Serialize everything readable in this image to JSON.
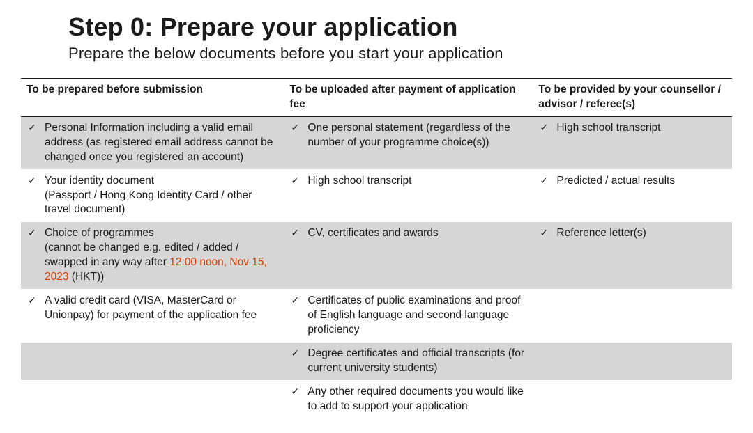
{
  "title": "Step 0: Prepare your application",
  "subtitle": "Prepare the below documents before you start your application",
  "colors": {
    "shaded_row_bg": "#d6d6d6",
    "highlight_text": "#d63a00",
    "rule": "#1a1a1a"
  },
  "table": {
    "headers": [
      "To be prepared before submission",
      "To be uploaded after payment of application fee",
      "To be provided by your counsellor / advisor / referee(s)"
    ],
    "rows": [
      {
        "shaded": true,
        "cells": [
          {
            "check": true,
            "text": "Personal Information including a valid email address (as registered email address cannot be changed once you registered an account)"
          },
          {
            "check": true,
            "text": "One personal statement (regardless of the number of your programme choice(s))"
          },
          {
            "check": true,
            "text": "High school transcript"
          }
        ]
      },
      {
        "shaded": false,
        "cells": [
          {
            "check": true,
            "text": "Your identity document",
            "subtext": "(Passport / Hong Kong Identity Card / other travel document)"
          },
          {
            "check": true,
            "text": "High school transcript"
          },
          {
            "check": true,
            "text": "Predicted / actual results"
          }
        ]
      },
      {
        "shaded": true,
        "cells": [
          {
            "check": true,
            "text": "Choice of programmes",
            "subtext_before": "(cannot be changed e.g. edited / added / swapped in any way after ",
            "subtext_highlight": "12:00 noon, Nov 15, 2023",
            "subtext_after": " (HKT))"
          },
          {
            "check": true,
            "text": "CV, certificates and awards"
          },
          {
            "check": true,
            "text": "Reference letter(s)"
          }
        ]
      },
      {
        "shaded": false,
        "cells": [
          {
            "check": true,
            "text": "A valid credit card (VISA, MasterCard or Unionpay) for payment of the application fee"
          },
          {
            "check": true,
            "text": "Certificates of public examinations and proof of English language and second language proficiency"
          },
          {
            "empty": true
          }
        ]
      },
      {
        "shaded": true,
        "cells": [
          {
            "empty": true
          },
          {
            "check": true,
            "text": "Degree certificates and official transcripts (for current university students)"
          },
          {
            "empty": true
          }
        ]
      },
      {
        "shaded": false,
        "cells": [
          {
            "empty": true
          },
          {
            "check": true,
            "text": "Any other required documents you would like to add to support your application"
          },
          {
            "empty": true
          }
        ]
      }
    ]
  }
}
